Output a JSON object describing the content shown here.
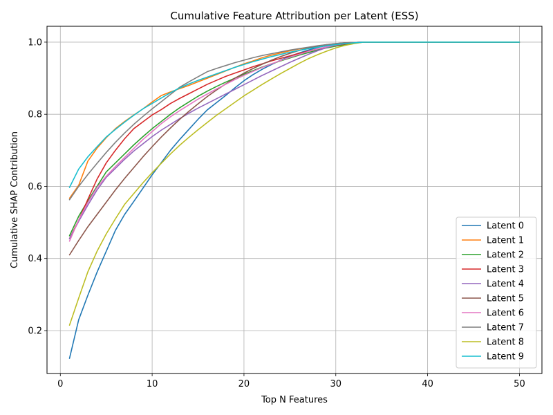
{
  "chart_data": {
    "type": "line",
    "title": "Cumulative Feature Attribution per Latent (ESS)",
    "xlabel": "Top N Features",
    "ylabel": "Cumulative SHAP Contribution",
    "xlim": [
      -1.45,
      52.45
    ],
    "ylim": [
      0.081,
      1.044
    ],
    "xticks": [
      0,
      10,
      20,
      30,
      40,
      50
    ],
    "xtick_labels": [
      "0",
      "10",
      "20",
      "30",
      "40",
      "50"
    ],
    "yticks": [
      0.2,
      0.4,
      0.6,
      0.8,
      1.0
    ],
    "ytick_labels": [
      "0.2",
      "0.4",
      "0.6",
      "0.8",
      "1.0"
    ],
    "grid": true,
    "legend_position": "lower right",
    "x": [
      1,
      2,
      3,
      4,
      5,
      6,
      7,
      8,
      9,
      10,
      11,
      12,
      13,
      14,
      15,
      16,
      17,
      18,
      19,
      20,
      21,
      22,
      23,
      24,
      25,
      26,
      27,
      28,
      29,
      30,
      31,
      32,
      33,
      34,
      35,
      36,
      37,
      38,
      39,
      40,
      41,
      42,
      43,
      44,
      45,
      46,
      47,
      48,
      49,
      50
    ],
    "series": [
      {
        "name": "Latent 0",
        "color": "#1f77b4",
        "values": [
          0.123,
          0.23,
          0.298,
          0.362,
          0.42,
          0.478,
          0.522,
          0.558,
          0.595,
          0.632,
          0.666,
          0.7,
          0.73,
          0.758,
          0.786,
          0.812,
          0.832,
          0.852,
          0.873,
          0.893,
          0.91,
          0.925,
          0.938,
          0.95,
          0.961,
          0.97,
          0.978,
          0.985,
          0.991,
          0.995,
          0.998,
          0.999,
          1.0,
          1.0,
          1.0,
          1.0,
          1.0,
          1.0,
          1.0,
          1.0,
          1.0,
          1.0,
          1.0,
          1.0,
          1.0,
          1.0,
          1.0,
          1.0,
          1.0,
          1.0
        ]
      },
      {
        "name": "Latent 1",
        "color": "#ff7f0e",
        "values": [
          0.567,
          0.603,
          0.67,
          0.706,
          0.735,
          0.76,
          0.78,
          0.798,
          0.815,
          0.834,
          0.852,
          0.862,
          0.871,
          0.88,
          0.89,
          0.9,
          0.91,
          0.92,
          0.93,
          0.94,
          0.948,
          0.957,
          0.964,
          0.97,
          0.976,
          0.981,
          0.985,
          0.989,
          0.992,
          0.995,
          0.997,
          0.999,
          1.0,
          1.0,
          1.0,
          1.0,
          1.0,
          1.0,
          1.0,
          1.0,
          1.0,
          1.0,
          1.0,
          1.0,
          1.0,
          1.0,
          1.0,
          1.0,
          1.0,
          1.0
        ]
      },
      {
        "name": "Latent 2",
        "color": "#2ca02c",
        "values": [
          0.463,
          0.517,
          0.56,
          0.6,
          0.64,
          0.665,
          0.69,
          0.715,
          0.738,
          0.76,
          0.78,
          0.8,
          0.818,
          0.834,
          0.85,
          0.864,
          0.877,
          0.889,
          0.9,
          0.911,
          0.921,
          0.931,
          0.94,
          0.948,
          0.956,
          0.964,
          0.971,
          0.978,
          0.984,
          0.989,
          0.993,
          0.997,
          1.0,
          1.0,
          1.0,
          1.0,
          1.0,
          1.0,
          1.0,
          1.0,
          1.0,
          1.0,
          1.0,
          1.0,
          1.0,
          1.0,
          1.0,
          1.0,
          1.0,
          1.0
        ]
      },
      {
        "name": "Latent 3",
        "color": "#d62728",
        "values": [
          0.455,
          0.506,
          0.564,
          0.62,
          0.665,
          0.7,
          0.732,
          0.76,
          0.779,
          0.798,
          0.813,
          0.83,
          0.844,
          0.857,
          0.87,
          0.883,
          0.894,
          0.905,
          0.914,
          0.923,
          0.932,
          0.94,
          0.948,
          0.955,
          0.962,
          0.969,
          0.975,
          0.981,
          0.986,
          0.991,
          0.995,
          0.998,
          1.0,
          1.0,
          1.0,
          1.0,
          1.0,
          1.0,
          1.0,
          1.0,
          1.0,
          1.0,
          1.0,
          1.0,
          1.0,
          1.0,
          1.0,
          1.0,
          1.0,
          1.0
        ]
      },
      {
        "name": "Latent 4",
        "color": "#9467bd",
        "values": [
          0.455,
          0.503,
          0.548,
          0.59,
          0.625,
          0.65,
          0.675,
          0.698,
          0.718,
          0.738,
          0.756,
          0.772,
          0.788,
          0.803,
          0.817,
          0.83,
          0.843,
          0.856,
          0.869,
          0.882,
          0.895,
          0.908,
          0.92,
          0.932,
          0.944,
          0.955,
          0.966,
          0.976,
          0.985,
          0.992,
          0.997,
          0.999,
          1.0,
          1.0,
          1.0,
          1.0,
          1.0,
          1.0,
          1.0,
          1.0,
          1.0,
          1.0,
          1.0,
          1.0,
          1.0,
          1.0,
          1.0,
          1.0,
          1.0,
          1.0
        ]
      },
      {
        "name": "Latent 5",
        "color": "#8c564b",
        "values": [
          0.41,
          0.45,
          0.488,
          0.522,
          0.556,
          0.59,
          0.622,
          0.652,
          0.682,
          0.71,
          0.737,
          0.762,
          0.786,
          0.808,
          0.829,
          0.849,
          0.867,
          0.884,
          0.9,
          0.914,
          0.927,
          0.939,
          0.95,
          0.96,
          0.969,
          0.977,
          0.983,
          0.989,
          0.993,
          0.996,
          0.998,
          0.999,
          1.0,
          1.0,
          1.0,
          1.0,
          1.0,
          1.0,
          1.0,
          1.0,
          1.0,
          1.0,
          1.0,
          1.0,
          1.0,
          1.0,
          1.0,
          1.0,
          1.0,
          1.0
        ]
      },
      {
        "name": "Latent 6",
        "color": "#e377c2",
        "values": [
          0.448,
          0.507,
          0.555,
          0.597,
          0.628,
          0.655,
          0.68,
          0.705,
          0.73,
          0.752,
          0.774,
          0.793,
          0.81,
          0.826,
          0.842,
          0.856,
          0.87,
          0.883,
          0.896,
          0.908,
          0.919,
          0.93,
          0.94,
          0.949,
          0.958,
          0.966,
          0.974,
          0.981,
          0.987,
          0.992,
          0.996,
          0.999,
          1.0,
          1.0,
          1.0,
          1.0,
          1.0,
          1.0,
          1.0,
          1.0,
          1.0,
          1.0,
          1.0,
          1.0,
          1.0,
          1.0,
          1.0,
          1.0,
          1.0,
          1.0
        ]
      },
      {
        "name": "Latent 7",
        "color": "#7f7f7f",
        "values": [
          0.563,
          0.6,
          0.633,
          0.664,
          0.694,
          0.722,
          0.748,
          0.772,
          0.794,
          0.815,
          0.835,
          0.855,
          0.875,
          0.89,
          0.904,
          0.918,
          0.927,
          0.935,
          0.943,
          0.95,
          0.957,
          0.963,
          0.968,
          0.973,
          0.978,
          0.982,
          0.986,
          0.99,
          0.993,
          0.996,
          0.998,
          0.999,
          1.0,
          1.0,
          1.0,
          1.0,
          1.0,
          1.0,
          1.0,
          1.0,
          1.0,
          1.0,
          1.0,
          1.0,
          1.0,
          1.0,
          1.0,
          1.0,
          1.0,
          1.0
        ]
      },
      {
        "name": "Latent 8",
        "color": "#bcbd22",
        "values": [
          0.215,
          0.29,
          0.363,
          0.42,
          0.468,
          0.51,
          0.55,
          0.58,
          0.61,
          0.638,
          0.664,
          0.69,
          0.714,
          0.736,
          0.757,
          0.777,
          0.797,
          0.815,
          0.833,
          0.851,
          0.867,
          0.883,
          0.898,
          0.913,
          0.927,
          0.941,
          0.954,
          0.965,
          0.975,
          0.984,
          0.991,
          0.996,
          1.0,
          1.0,
          1.0,
          1.0,
          1.0,
          1.0,
          1.0,
          1.0,
          1.0,
          1.0,
          1.0,
          1.0,
          1.0,
          1.0,
          1.0,
          1.0,
          1.0,
          1.0
        ]
      },
      {
        "name": "Latent 9",
        "color": "#17becf",
        "values": [
          0.597,
          0.648,
          0.682,
          0.71,
          0.737,
          0.758,
          0.778,
          0.797,
          0.815,
          0.83,
          0.845,
          0.86,
          0.873,
          0.884,
          0.894,
          0.903,
          0.912,
          0.921,
          0.93,
          0.938,
          0.946,
          0.953,
          0.96,
          0.966,
          0.972,
          0.977,
          0.982,
          0.986,
          0.99,
          0.993,
          0.996,
          0.998,
          1.0,
          1.0,
          1.0,
          1.0,
          1.0,
          1.0,
          1.0,
          1.0,
          1.0,
          1.0,
          1.0,
          1.0,
          1.0,
          1.0,
          1.0,
          1.0,
          1.0,
          1.0
        ]
      }
    ]
  }
}
